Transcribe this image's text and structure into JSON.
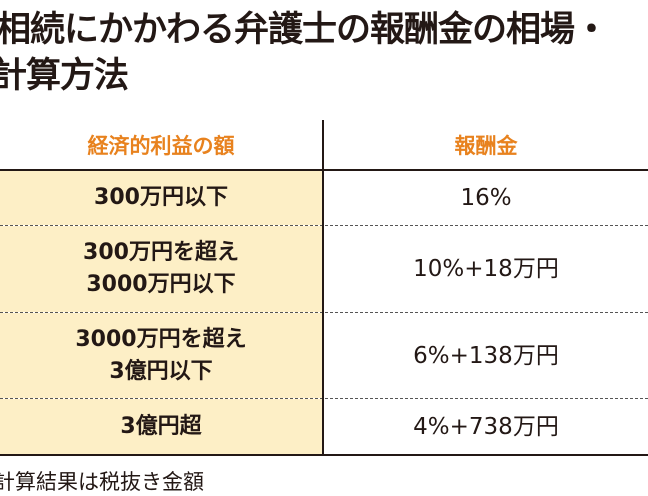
{
  "title": {
    "line1": "相続にかかわる弁護士の報酬金の相場・",
    "line2": "計算方法"
  },
  "colors": {
    "header_text": "#e8821e",
    "left_column_bg": "#fdefc6",
    "text": "#231815"
  },
  "table": {
    "headers": [
      "経済的利益の額",
      "報酬金"
    ],
    "rows": [
      {
        "amount": [
          "300万円以下"
        ],
        "fee": "16%"
      },
      {
        "amount": [
          "300万円を超え",
          "3000万円以下"
        ],
        "fee": "10%+18万円"
      },
      {
        "amount": [
          "3000万円を超え",
          "3億円以下"
        ],
        "fee": "6%+138万円"
      },
      {
        "amount": [
          "3億円超"
        ],
        "fee": "4%+738万円"
      }
    ]
  },
  "note": "計算結果は税抜き金額"
}
